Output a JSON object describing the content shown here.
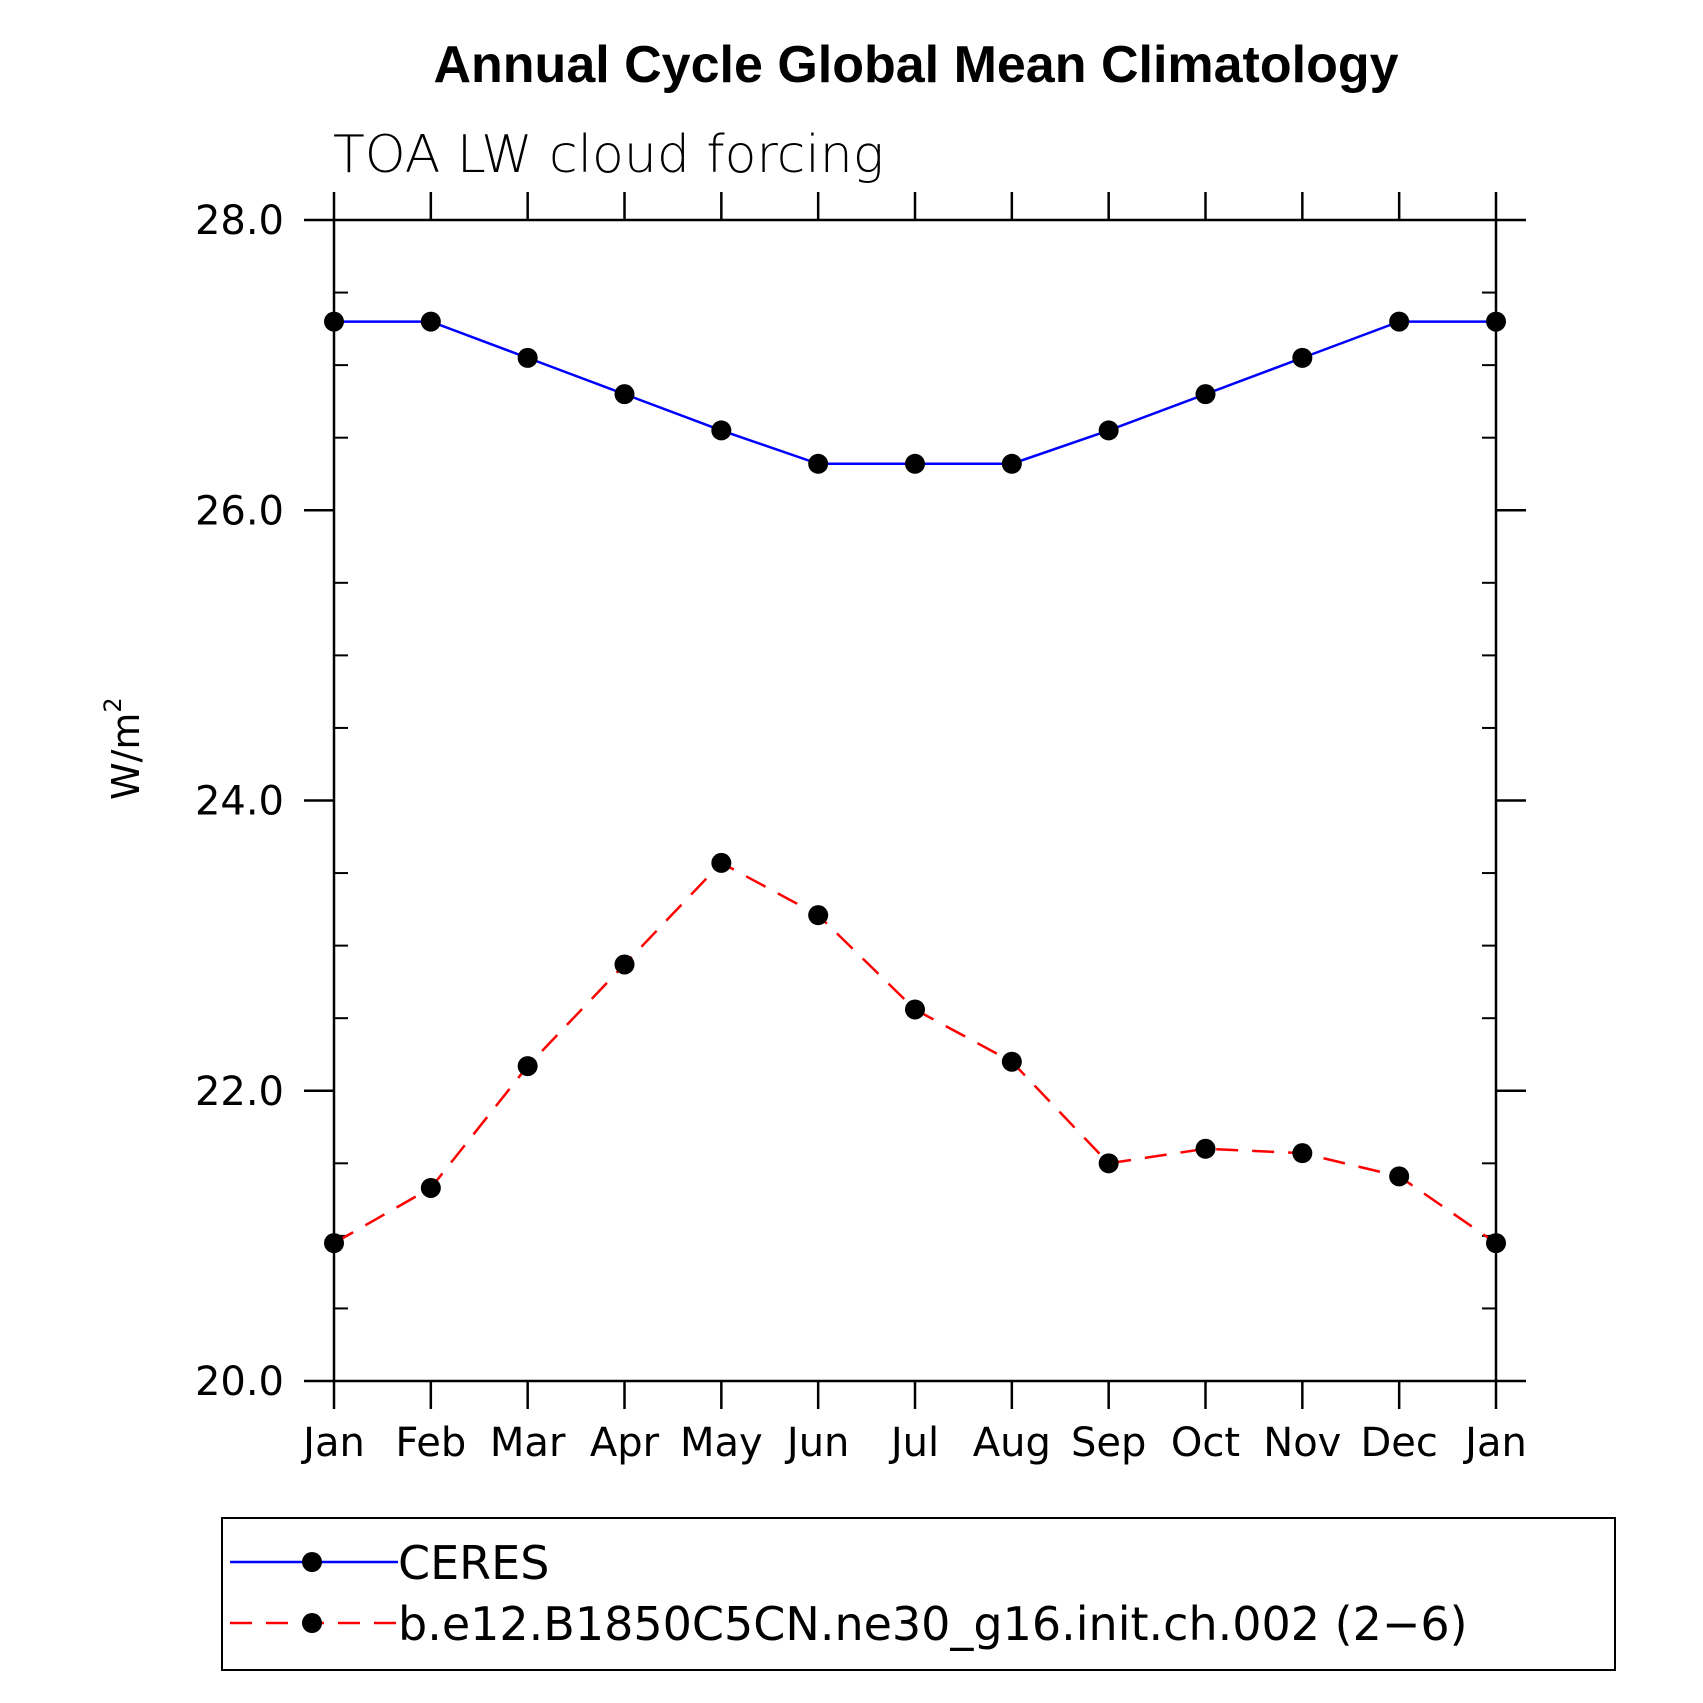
{
  "chart_data": {
    "type": "line",
    "title": "Annual Cycle Global Mean Climatology",
    "subtitle": "TOA LW cloud forcing",
    "xlabel": "",
    "ylabel": "W/m",
    "ylabel_superscript": "2",
    "categories": [
      "Jan",
      "Feb",
      "Mar",
      "Apr",
      "May",
      "Jun",
      "Jul",
      "Aug",
      "Sep",
      "Oct",
      "Nov",
      "Dec",
      "Jan"
    ],
    "ylim": [
      20.0,
      28.0
    ],
    "yticks": [
      "20.0",
      "22.0",
      "24.0",
      "26.0",
      "28.0"
    ],
    "ytick_values": [
      20,
      22,
      24,
      26,
      28
    ],
    "y_minor_step": 0.5,
    "grid": false,
    "legend_position": "bottom",
    "series": [
      {
        "name": "CERES",
        "color": "#0000ff",
        "style": "solid",
        "marker": "filled-circle",
        "values": [
          27.3,
          27.3,
          27.05,
          26.8,
          26.55,
          26.32,
          26.32,
          26.32,
          26.55,
          26.8,
          27.05,
          27.3,
          27.3
        ]
      },
      {
        "name": "b.e12.B1850C5CN.ne30_g16.init.ch.002 (2−6)",
        "color": "#ff0000",
        "style": "dashed",
        "marker": "filled-circle",
        "values": [
          20.95,
          21.33,
          22.17,
          22.87,
          23.57,
          23.21,
          22.56,
          22.2,
          21.5,
          21.6,
          21.57,
          21.41,
          20.95
        ]
      }
    ]
  }
}
